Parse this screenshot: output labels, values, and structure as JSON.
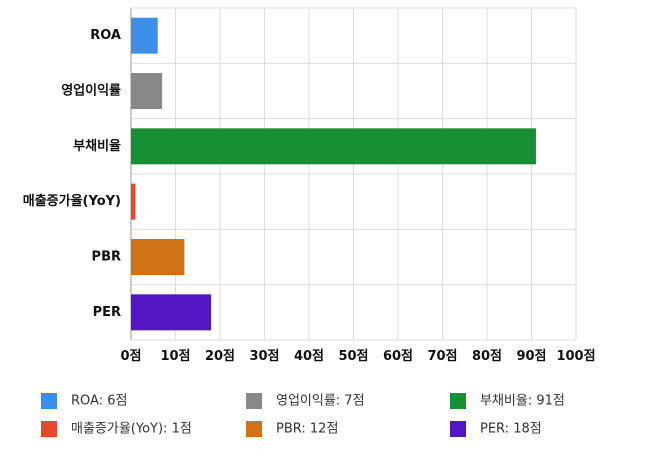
{
  "chart_data": {
    "type": "bar",
    "orientation": "horizontal",
    "categories": [
      "ROA",
      "영업이익률",
      "부채비율",
      "매출증가율(YoY)",
      "PBR",
      "PER"
    ],
    "values": [
      6,
      7,
      91,
      1,
      12,
      18
    ],
    "colors": [
      "#3d8ee8",
      "#888888",
      "#198f35",
      "#e8462f",
      "#d07316",
      "#5216c4"
    ],
    "xlim": [
      0,
      100
    ],
    "xticks": [
      0,
      10,
      20,
      30,
      40,
      50,
      60,
      70,
      80,
      90,
      100
    ],
    "tick_suffix": "점",
    "grid": true,
    "legend": {
      "placement": "bottom",
      "items": [
        "ROA: 6점",
        "영업이익률: 7점",
        "부채비율: 91점",
        "매출증가율(YoY): 1점",
        "PBR: 12점",
        "PER: 18점"
      ]
    }
  }
}
